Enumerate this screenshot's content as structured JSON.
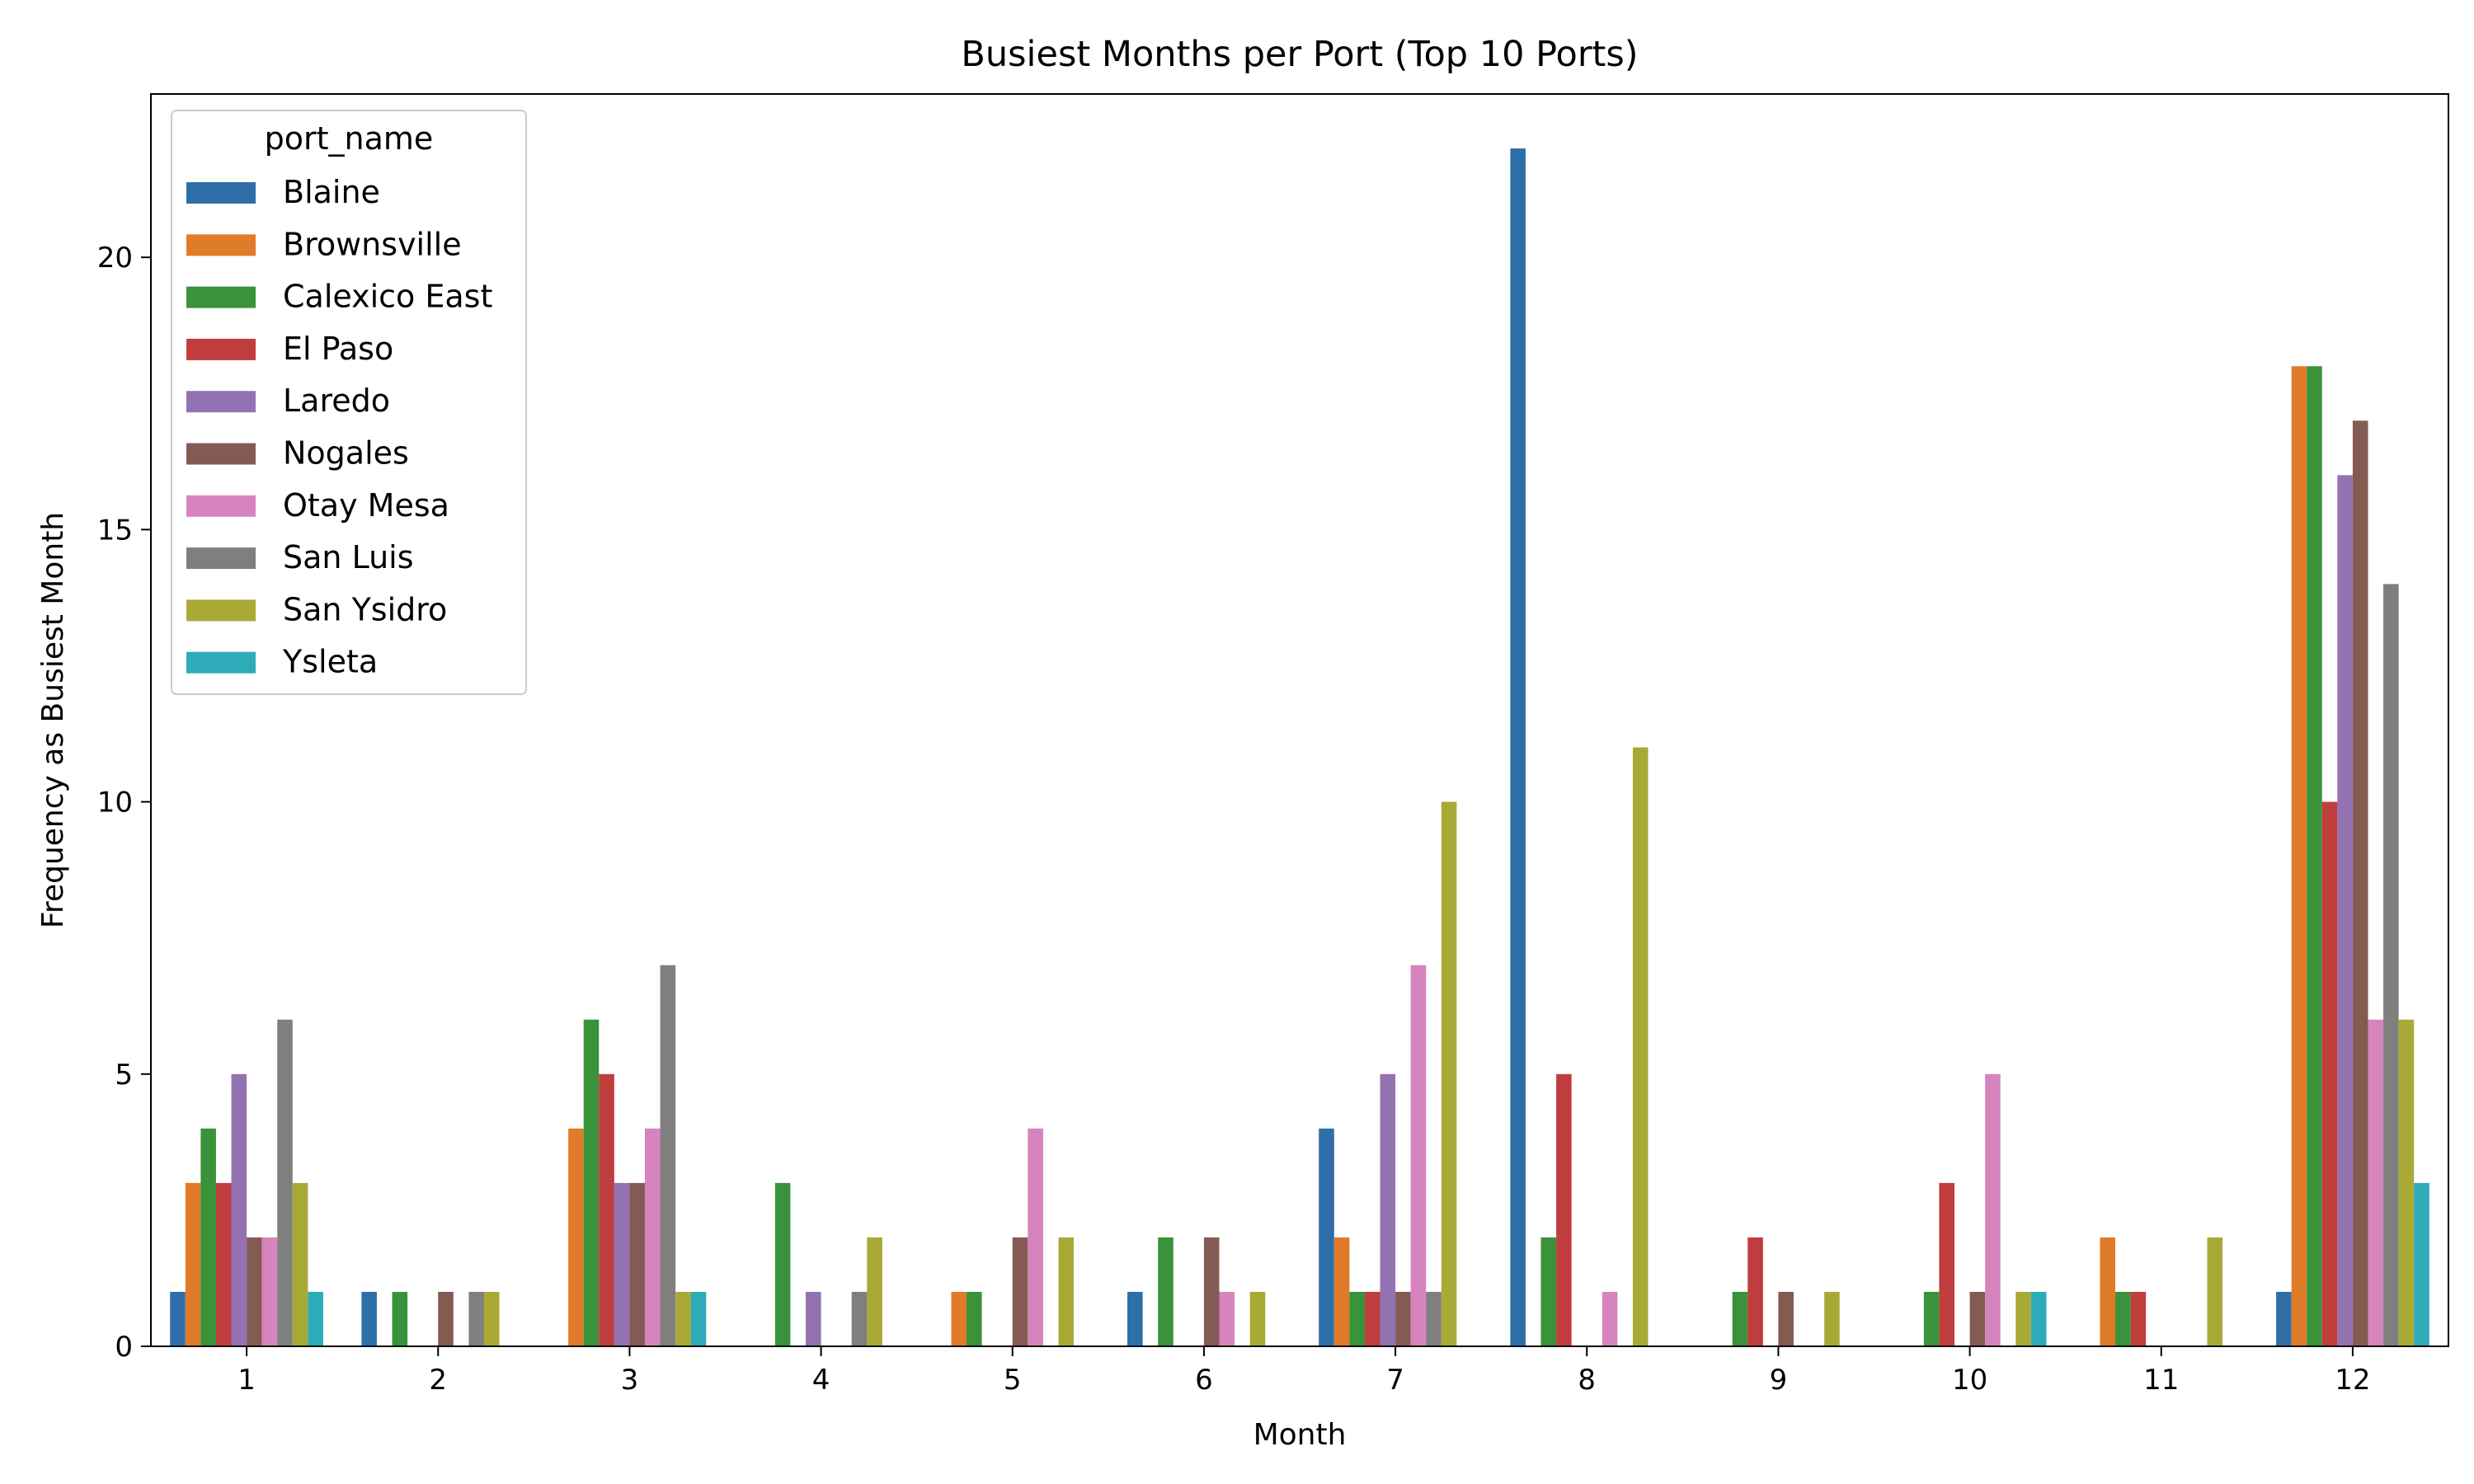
{
  "chart_data": {
    "type": "bar",
    "title": "Busiest Months per Port (Top 10 Ports)",
    "xlabel": "Month",
    "ylabel": "Frequency as Busiest Month",
    "categories": [
      "1",
      "2",
      "3",
      "4",
      "5",
      "6",
      "7",
      "8",
      "9",
      "10",
      "11",
      "12"
    ],
    "ylim": [
      0,
      23
    ],
    "yticks": [
      0,
      5,
      10,
      15,
      20
    ],
    "grid": false,
    "legend": {
      "title": "port_name",
      "placement": "top-left"
    },
    "series": [
      {
        "name": "Blaine",
        "color": "#2f6fa8",
        "values": [
          1,
          1,
          0,
          0,
          0,
          1,
          4,
          22,
          0,
          0,
          0,
          1
        ]
      },
      {
        "name": "Brownsville",
        "color": "#e07b2a",
        "values": [
          3,
          0,
          4,
          0,
          1,
          0,
          2,
          0,
          0,
          0,
          2,
          18
        ]
      },
      {
        "name": "Calexico East",
        "color": "#3a923a",
        "values": [
          4,
          1,
          6,
          3,
          1,
          2,
          1,
          2,
          1,
          1,
          1,
          18
        ]
      },
      {
        "name": "El Paso",
        "color": "#c03d3e",
        "values": [
          3,
          0,
          5,
          0,
          0,
          0,
          1,
          5,
          2,
          3,
          1,
          10
        ]
      },
      {
        "name": "Laredo",
        "color": "#9372b2",
        "values": [
          5,
          0,
          3,
          1,
          0,
          0,
          5,
          0,
          0,
          0,
          0,
          16
        ]
      },
      {
        "name": "Nogales",
        "color": "#845b53",
        "values": [
          2,
          1,
          3,
          0,
          2,
          2,
          1,
          0,
          1,
          1,
          0,
          17
        ]
      },
      {
        "name": "Otay Mesa",
        "color": "#d684bd",
        "values": [
          2,
          0,
          4,
          0,
          4,
          1,
          7,
          1,
          0,
          5,
          0,
          6
        ]
      },
      {
        "name": "San Luis",
        "color": "#7f7f7f",
        "values": [
          6,
          1,
          7,
          1,
          0,
          0,
          1,
          0,
          0,
          0,
          0,
          14
        ]
      },
      {
        "name": "San Ysidro",
        "color": "#a9aa35",
        "values": [
          3,
          1,
          1,
          2,
          2,
          1,
          10,
          11,
          1,
          1,
          2,
          6
        ]
      },
      {
        "name": "Ysleta",
        "color": "#2eabb8",
        "values": [
          1,
          0,
          1,
          0,
          0,
          0,
          0,
          0,
          0,
          1,
          0,
          3
        ]
      }
    ]
  }
}
